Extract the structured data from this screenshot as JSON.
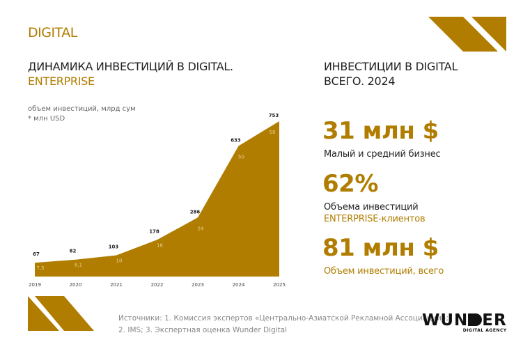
{
  "header": {
    "section": "DIGITAL",
    "chart_title_line1": "ДИНАМИКА ИНВЕСТИЦИЙ В DIGITAL.",
    "chart_title_line2": "ENTERPRISE",
    "right_title_line1": "ИНВЕСТИЦИИ В DIGITAL",
    "right_title_line2": "ВСЕГО. 2024"
  },
  "colors": {
    "accent": "#b07d00",
    "text": "#222222"
  },
  "chart_data": {
    "type": "area",
    "ylabel": "объем инвестиций, млрд сум",
    "ylabel_secondary": "* млн USD",
    "categories": [
      "2019",
      "2020",
      "2021",
      "2022",
      "2023",
      "2024",
      "2025"
    ],
    "series": [
      {
        "name": "млрд сум",
        "values": [
          67,
          82,
          103,
          178,
          286,
          633,
          753
        ]
      },
      {
        "name": "млн USD",
        "values": [
          "7,5",
          "8,1",
          "10",
          "16",
          "24",
          "50",
          "58"
        ]
      }
    ],
    "ylim": [
      0,
      753
    ],
    "grid": false
  },
  "stats": [
    {
      "value": "31 млн $",
      "label": "Малый и средний бизнес",
      "label2": ""
    },
    {
      "value": "62%",
      "label": "Объема инвестиций",
      "label2": "ENTERPRISE-клиентов"
    },
    {
      "value": "81 млн $",
      "label": "Объем инвестиций, всего",
      "label2": ""
    }
  ],
  "footer": {
    "sources_line1": "Источники: 1. Комиссия экспертов «Центрально-Азиатской Рекламной Ассоциации»;",
    "sources_line2": "2. IMS; 3. Экспертная оценка Wunder Digital",
    "logo_text": "WUNDER",
    "logo_sub": "DIGITAL AGENCY"
  }
}
